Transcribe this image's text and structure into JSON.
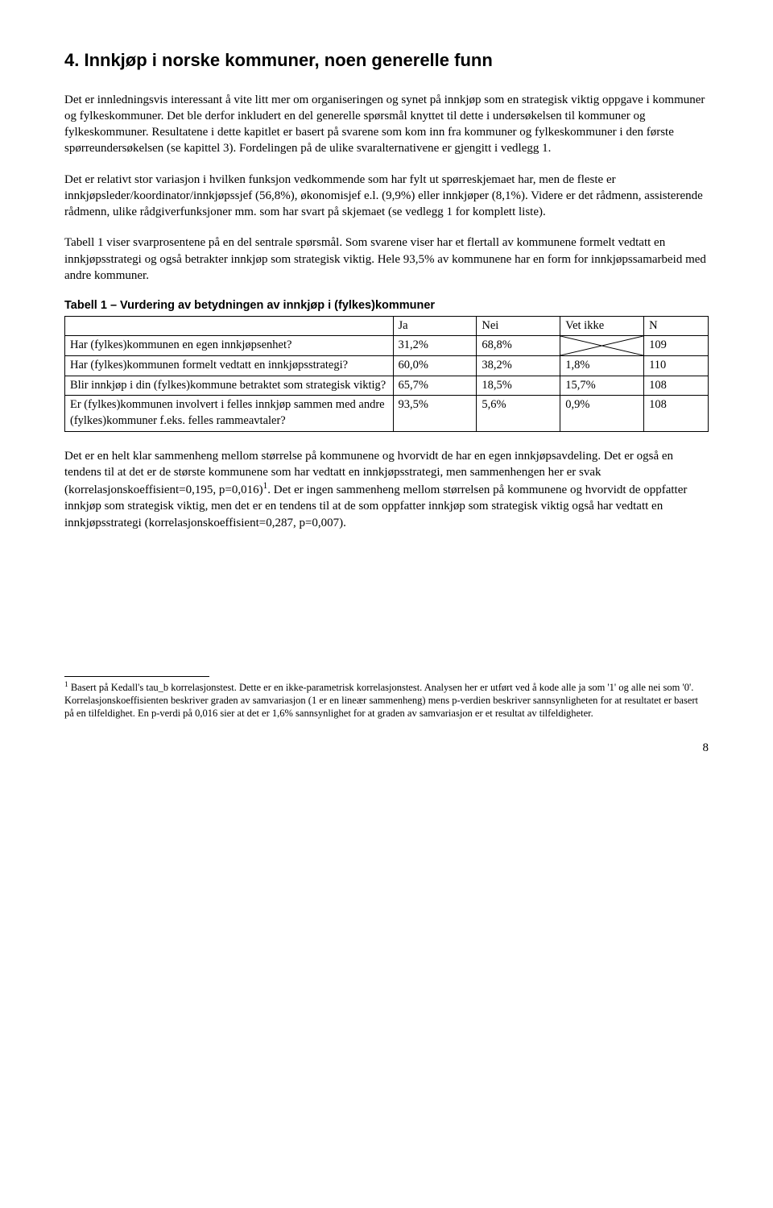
{
  "heading": "4. Innkjøp i norske kommuner, noen generelle funn",
  "paragraphs": {
    "p1": "Det er innledningsvis interessant å vite litt mer om organiseringen og synet på innkjøp som en strategisk viktig oppgave i kommuner og fylkeskommuner. Det ble derfor inkludert en del generelle spørsmål knyttet til dette i undersøkelsen til kommuner og fylkeskommuner. Resultatene i dette kapitlet er basert på svarene som kom inn fra kommuner og fylkeskommuner i den første spørreundersøkelsen (se kapittel 3). Fordelingen på de ulike svaralternativene er gjengitt i vedlegg 1.",
    "p2": "Det er relativt stor variasjon i hvilken funksjon vedkommende som har fylt ut spørreskjemaet har, men de fleste er innkjøpsleder/koordinator/innkjøpssjef (56,8%), økonomisjef e.l. (9,9%) eller innkjøper (8,1%). Videre er det rådmenn, assisterende rådmenn, ulike rådgiverfunksjoner mm. som har svart på skjemaet (se vedlegg 1 for komplett liste).",
    "p3": "Tabell 1 viser svarprosentene på en del sentrale spørsmål. Som svarene viser har et flertall av kommunene formelt vedtatt en innkjøpsstrategi og også betrakter innkjøp som strategisk viktig. Hele 93,5% av kommunene har en form for innkjøpssamarbeid med andre kommuner.",
    "p4_a": "Det er en helt klar sammenheng mellom størrelse på kommunene og hvorvidt de har en egen innkjøpsavdeling. Det er også en tendens til at det er de største kommunene som har vedtatt en innkjøpsstrategi, men sammenhengen her er svak (korrelasjonskoeffisient=0,195, p=0,016)",
    "p4_b": ". Det er ingen sammenheng mellom størrelsen på kommunene og hvorvidt de oppfatter innkjøp som strategisk viktig, men det er en tendens til at de som oppfatter innkjøp som strategisk viktig også har vedtatt en innkjøpsstrategi (korrelasjonskoeffisient=0,287, p=0,007)."
  },
  "table": {
    "title": "Tabell 1 – Vurdering av betydningen av innkjøp i (fylkes)kommuner",
    "headers": {
      "ja": "Ja",
      "nei": "Nei",
      "vet": "Vet ikke",
      "n": "N"
    },
    "rows": [
      {
        "q": "Har (fylkes)kommunen en egen innkjøpsenhet?",
        "ja": "31,2%",
        "nei": "68,8%",
        "vet": "",
        "vet_cross": true,
        "n": "109"
      },
      {
        "q": "Har (fylkes)kommunen formelt vedtatt en innkjøpsstrategi?",
        "ja": "60,0%",
        "nei": "38,2%",
        "vet": "1,8%",
        "vet_cross": false,
        "n": "110"
      },
      {
        "q": "Blir innkjøp i din (fylkes)kommune betraktet som strategisk viktig?",
        "ja": "65,7%",
        "nei": "18,5%",
        "vet": "15,7%",
        "vet_cross": false,
        "n": "108"
      },
      {
        "q": "Er (fylkes)kommunen involvert i felles innkjøp sammen med andre (fylkes)kommuner f.eks. felles rammeavtaler?",
        "ja": "93,5%",
        "nei": "5,6%",
        "vet": "0,9%",
        "vet_cross": false,
        "n": "108"
      }
    ]
  },
  "footnote": {
    "marker": "1",
    "text": " Basert på Kedall's tau_b korrelasjonstest. Dette er en ikke-parametrisk korrelasjonstest. Analysen her er utført ved å kode alle ja som '1' og alle nei som '0'. Korrelasjonskoeffisienten beskriver graden av samvariasjon (1 er en lineær sammenheng) mens p-verdien beskriver sannsynligheten for at resultatet er basert på en tilfeldighet. En p-verdi på 0,016 sier at det er 1,6% sannsynlighet for at graden av samvariasjon er et resultat av tilfeldigheter."
  },
  "page_number": "8"
}
